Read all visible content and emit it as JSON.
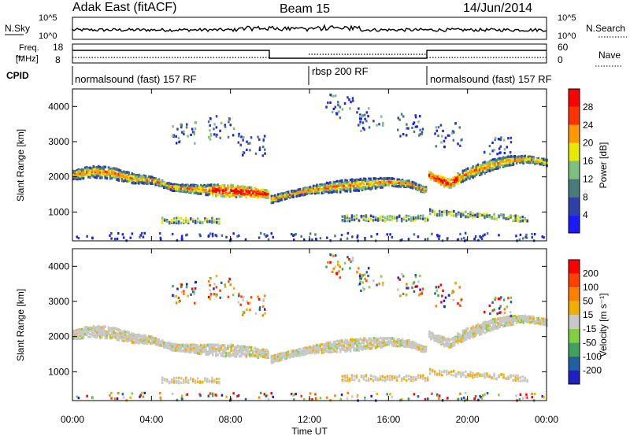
{
  "header": {
    "station": "Adak East (fitACF)",
    "beam": "Beam 15",
    "date": "14/Jun/2014"
  },
  "panels": {
    "nsky": {
      "label": "N.Sky",
      "ticks": [
        "10^5",
        "10^0"
      ]
    },
    "nsearch": {
      "label": "N.Search",
      "ticks": [
        "10^5",
        "10^0"
      ]
    },
    "freq": {
      "label_line1": "Freq.",
      "label_line2": "[MHz]",
      "ticks": [
        "18",
        "8"
      ]
    },
    "nave": {
      "label": "Nave",
      "ticks": [
        "60",
        "0"
      ]
    },
    "cpid": {
      "label": "CPID",
      "segments": [
        {
          "name": "normalsound (fast) 157 RF",
          "start_hour": 0,
          "end_hour": 12
        },
        {
          "name": "rbsp 200 RF",
          "start_hour": 12,
          "end_hour": 18
        },
        {
          "name": "normalsound (fast) 157 RF",
          "start_hour": 18,
          "end_hour": 24
        }
      ]
    }
  },
  "chart_data": [
    {
      "type": "heatmap",
      "name": "power",
      "xlabel": "",
      "ylabel": "Slant Range [km]",
      "xlim": [
        0,
        24
      ],
      "ylim": [
        180,
        4500
      ],
      "yticks": [
        "1000",
        "2000",
        "3000",
        "4000"
      ],
      "colorbar": {
        "label": "Power [dB]",
        "levels": [
          "4",
          "8",
          "12",
          "16",
          "20",
          "24",
          "28"
        ],
        "colors": [
          "#1a1aff",
          "#2f3fa8",
          "#4a7a7a",
          "#7fbf7f",
          "#e8e800",
          "#ff9900",
          "#ff3300",
          "#ff0000"
        ]
      },
      "series": [
        {
          "hours": [
            0,
            1,
            2,
            3,
            4,
            5,
            6,
            7,
            8,
            9,
            9.9
          ],
          "range_km": [
            2050,
            2150,
            2100,
            1950,
            1900,
            1700,
            1650,
            1620,
            1600,
            1550,
            1500
          ]
        },
        {
          "hours": [
            10,
            11,
            12,
            13,
            14,
            15,
            16,
            17,
            17.9
          ],
          "range_km": [
            1350,
            1500,
            1620,
            1700,
            1750,
            1800,
            1850,
            1800,
            1600
          ]
        },
        {
          "hours": [
            18,
            19,
            20,
            21,
            22,
            23,
            24
          ],
          "range_km": [
            2050,
            1800,
            2100,
            2300,
            2450,
            2500,
            2400
          ]
        }
      ]
    },
    {
      "type": "heatmap",
      "name": "velocity",
      "xlabel": "Time UT",
      "ylabel": "Slant Range [km]",
      "xlim": [
        0,
        24
      ],
      "ylim": [
        180,
        4500
      ],
      "xticks": [
        "00:00",
        "04:00",
        "08:00",
        "12:00",
        "16:00",
        "20:00",
        "00:00"
      ],
      "yticks": [
        "1000",
        "2000",
        "3000",
        "4000"
      ],
      "colorbar": {
        "label": "Velocity [m s⁻¹]",
        "levels": [
          "200",
          "100",
          "50",
          "15",
          "-15",
          "-50",
          "-100",
          "-200"
        ],
        "colors": [
          "#2020c0",
          "#2060a0",
          "#40a060",
          "#80d040",
          "#c8c8c8",
          "#f0b000",
          "#ff8000",
          "#ff4000",
          "#ff0000"
        ]
      }
    }
  ],
  "colors": {
    "ground_scatter": "#b8b8b8",
    "axis": "#000000"
  }
}
